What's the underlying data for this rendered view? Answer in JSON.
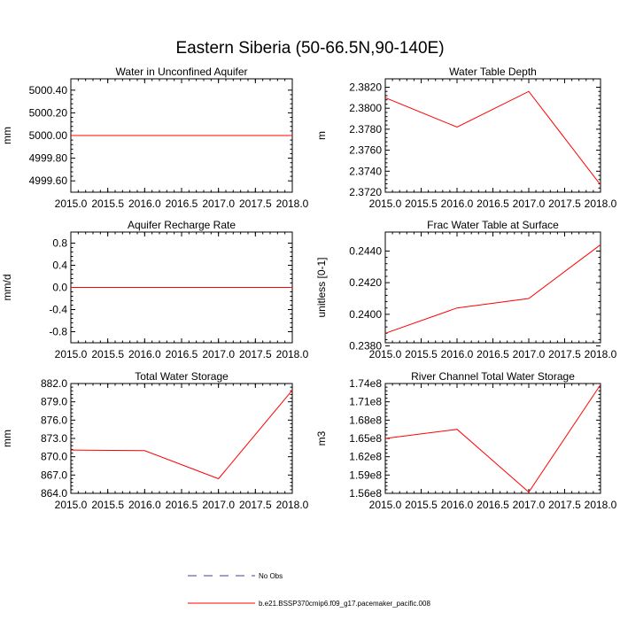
{
  "title": "Eastern Siberia (50-66.5N,90-140E)",
  "colors": {
    "series": "#ff0000",
    "obs": "#4b3f8f",
    "axis": "#000000"
  },
  "legend": {
    "placement": "bottom-center",
    "entries": [
      {
        "label": "No Obs",
        "style": "dashed",
        "color": "#4b3f8f"
      },
      {
        "label": "b.e21.BSSP370cmip6.f09_g17.pacemaker_pacific.008",
        "style": "solid",
        "color": "#ff0000"
      }
    ]
  },
  "chart_data": [
    {
      "type": "line",
      "title": "Water in Unconfined Aquifer",
      "ylabel": "mm",
      "x": [
        2015.0,
        2016.0,
        2017.0,
        2018.0
      ],
      "values": [
        5000.0,
        5000.0,
        5000.0,
        5000.0
      ],
      "xlim": [
        2015.0,
        2018.0
      ],
      "ylim": [
        4999.5,
        5000.5
      ],
      "xticks": [
        2015.0,
        2015.5,
        2016.0,
        2016.5,
        2017.0,
        2017.5,
        2018.0
      ],
      "xtick_labels": [
        "2015.0",
        "2015.5",
        "2016.0",
        "2016.5",
        "2017.0",
        "2017.5",
        "2018.0"
      ],
      "yticks": [
        4999.6,
        4999.8,
        5000.0,
        5000.2,
        5000.4
      ],
      "ytick_labels": [
        "4999.60",
        "4999.80",
        "5000.00",
        "5000.20",
        "5000.40"
      ],
      "grid": false
    },
    {
      "type": "line",
      "title": "Water Table Depth",
      "ylabel": "m",
      "x": [
        2015.0,
        2016.0,
        2017.0,
        2018.0
      ],
      "values": [
        2.381,
        2.3782,
        2.3816,
        2.3727
      ],
      "xlim": [
        2015.0,
        2018.0
      ],
      "ylim": [
        2.372,
        2.3828
      ],
      "xticks": [
        2015.0,
        2015.5,
        2016.0,
        2016.5,
        2017.0,
        2017.5,
        2018.0
      ],
      "xtick_labels": [
        "2015.0",
        "2015.5",
        "2016.0",
        "2016.5",
        "2017.0",
        "2017.5",
        "2018.0"
      ],
      "yticks": [
        2.372,
        2.374,
        2.376,
        2.378,
        2.38,
        2.382
      ],
      "ytick_labels": [
        "2.3720",
        "2.3740",
        "2.3760",
        "2.3780",
        "2.3800",
        "2.3820"
      ],
      "grid": false
    },
    {
      "type": "line",
      "title": "Aquifer Recharge Rate",
      "ylabel": "mm/d",
      "x": [
        2015.0,
        2016.0,
        2017.0,
        2018.0
      ],
      "values": [
        0.0,
        0.0,
        0.0,
        0.0
      ],
      "xlim": [
        2015.0,
        2018.0
      ],
      "ylim": [
        -1.0,
        1.0
      ],
      "xticks": [
        2015.0,
        2015.5,
        2016.0,
        2016.5,
        2017.0,
        2017.5,
        2018.0
      ],
      "xtick_labels": [
        "2015.0",
        "2015.5",
        "2016.0",
        "2016.5",
        "2017.0",
        "2017.5",
        "2018.0"
      ],
      "yticks": [
        -0.8,
        -0.4,
        0.0,
        0.4,
        0.8
      ],
      "ytick_labels": [
        "-0.8",
        "-0.4",
        "0.0",
        "0.4",
        "0.8"
      ],
      "grid": false
    },
    {
      "type": "line",
      "title": "Frac Water Table at Surface",
      "ylabel": "unitless [0-1]",
      "x": [
        2015.0,
        2016.0,
        2017.0,
        2018.0
      ],
      "values": [
        0.2388,
        0.2404,
        0.241,
        0.2444
      ],
      "xlim": [
        2015.0,
        2018.0
      ],
      "ylim": [
        0.2382,
        0.2452
      ],
      "xticks": [
        2015.0,
        2015.5,
        2016.0,
        2016.5,
        2017.0,
        2017.5,
        2018.0
      ],
      "xtick_labels": [
        "2015.0",
        "2015.5",
        "2016.0",
        "2016.5",
        "2017.0",
        "2017.5",
        "2018.0"
      ],
      "yticks": [
        0.238,
        0.24,
        0.242,
        0.244
      ],
      "ytick_labels": [
        "0.2380",
        "0.2400",
        "0.2420",
        "0.2440"
      ],
      "grid": false
    },
    {
      "type": "line",
      "title": "Total Water Storage",
      "ylabel": "mm",
      "x": [
        2015.0,
        2016.0,
        2017.0,
        2018.0
      ],
      "values": [
        871.1,
        871.0,
        866.4,
        880.9
      ],
      "xlim": [
        2015.0,
        2018.0
      ],
      "ylim": [
        864.0,
        882.0
      ],
      "xticks": [
        2015.0,
        2015.5,
        2016.0,
        2016.5,
        2017.0,
        2017.5,
        2018.0
      ],
      "xtick_labels": [
        "2015.0",
        "2015.5",
        "2016.0",
        "2016.5",
        "2017.0",
        "2017.5",
        "2018.0"
      ],
      "yticks": [
        864.0,
        867.0,
        870.0,
        873.0,
        876.0,
        879.0,
        882.0
      ],
      "ytick_labels": [
        "864.0",
        "867.0",
        "870.0",
        "873.0",
        "876.0",
        "879.0",
        "882.0"
      ],
      "grid": false
    },
    {
      "type": "line",
      "title": "River Channel Total Water Storage",
      "ylabel": "m3",
      "x": [
        2015.0,
        2016.0,
        2017.0,
        2018.0
      ],
      "values": [
        165000000,
        166500000,
        156200000,
        173800000
      ],
      "xlim": [
        2015.0,
        2018.0
      ],
      "ylim": [
        156000000,
        174000000
      ],
      "xticks": [
        2015.0,
        2015.5,
        2016.0,
        2016.5,
        2017.0,
        2017.5,
        2018.0
      ],
      "xtick_labels": [
        "2015.0",
        "2015.5",
        "2016.0",
        "2016.5",
        "2017.0",
        "2017.5",
        "2018.0"
      ],
      "yticks": [
        156000000,
        159000000,
        162000000,
        165000000,
        168000000,
        171000000,
        174000000
      ],
      "ytick_labels": [
        "1.56e8",
        "1.59e8",
        "1.62e8",
        "1.65e8",
        "1.68e8",
        "1.71e8",
        "1.74e8"
      ],
      "grid": false
    }
  ]
}
